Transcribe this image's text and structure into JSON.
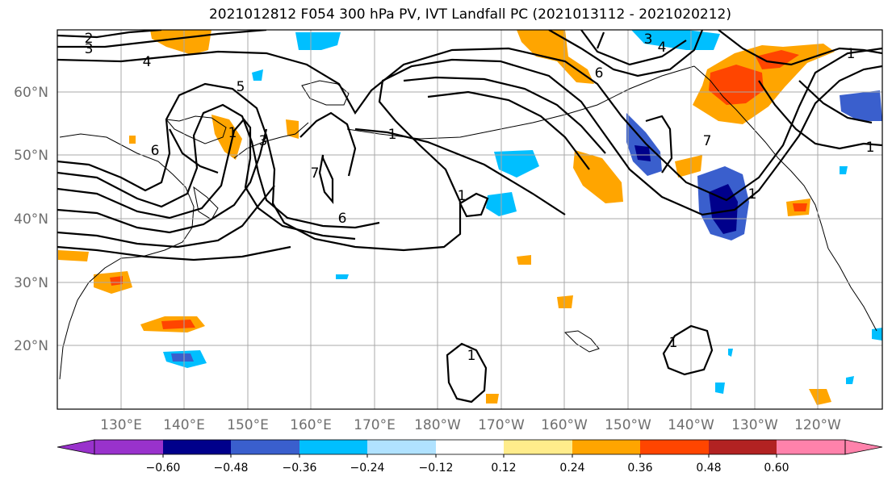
{
  "title": "2021012812 F054 300 hPa PV, IVT Landfall PC (2021013112 - 2021020212)",
  "lat_labels": [
    "60°N",
    "50°N",
    "40°N",
    "30°N",
    "20°N"
  ],
  "lon_labels": [
    "130°E",
    "140°E",
    "150°E",
    "160°E",
    "170°E",
    "180°W",
    "170°W",
    "160°W",
    "150°W",
    "140°W",
    "130°W",
    "120°W"
  ],
  "colorbar": {
    "ticks": [
      "−0.60",
      "−0.48",
      "−0.36",
      "−0.24",
      "−0.12",
      "0.12",
      "0.24",
      "0.36",
      "0.48",
      "0.60"
    ],
    "colors": [
      "#9932cc",
      "#00008b",
      "#3a5fcd",
      "#00bfff",
      "#b0e2ff",
      "#ffffff",
      "#ffec8b",
      "#ffa500",
      "#ff4500",
      "#b22222",
      "#ff82ab"
    ]
  },
  "contour_labels": [
    "2",
    "3",
    "4",
    "5",
    "6",
    "1",
    "7",
    "3",
    "6",
    "1",
    "1",
    "1",
    "3",
    "4",
    "6",
    "7",
    "1",
    "1",
    "1",
    "1"
  ]
}
